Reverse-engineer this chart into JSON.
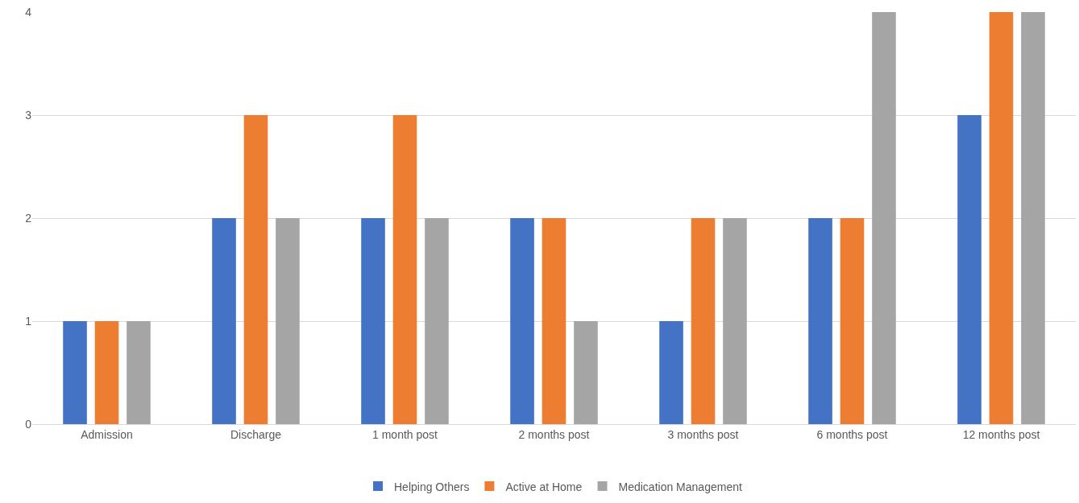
{
  "chart_data": {
    "type": "bar",
    "categories": [
      "Admission",
      "Discharge",
      "1 month post",
      "2 months post",
      "3 months post",
      "6 months post",
      "12 months post"
    ],
    "series": [
      {
        "name": "Helping Others",
        "color": "#4472c4",
        "values": [
          1,
          2,
          2,
          2,
          1,
          2,
          3
        ]
      },
      {
        "name": "Active at Home",
        "color": "#ed7d31",
        "values": [
          1,
          3,
          3,
          2,
          2,
          2,
          4
        ]
      },
      {
        "name": "Medication Management",
        "color": "#a5a5a5",
        "values": [
          1,
          2,
          2,
          1,
          2,
          4,
          4
        ]
      }
    ],
    "ylim": [
      0,
      4
    ],
    "yticks": [
      0,
      1,
      2,
      3,
      4
    ],
    "grid": "y",
    "legend": "bottom"
  }
}
